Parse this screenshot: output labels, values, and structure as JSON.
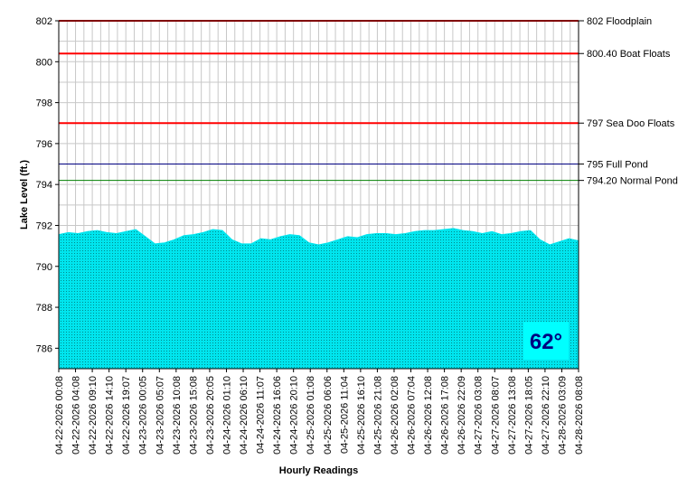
{
  "chart_data": {
    "type": "area",
    "xlabel": "Hourly Readings",
    "ylabel": "Lake Level (ft.)",
    "ylim": [
      785,
      802
    ],
    "y_ticks": [
      786,
      788,
      790,
      792,
      794,
      796,
      798,
      800,
      802
    ],
    "grid": true,
    "x_tick_labels": [
      "04-22-2026 00:08",
      "04-22-2026 04:08",
      "04-22-2026 09:10",
      "04-22-2026 14:10",
      "04-22-2026 19:07",
      "04-23-2026 00:05",
      "04-23-2026 05:07",
      "04-23-2026 10:08",
      "04-23-2026 15:08",
      "04-23-2026 20:05",
      "04-24-2026 01:10",
      "04-24-2026 06:10",
      "04-24-2026 11:07",
      "04-24-2026 16:06",
      "04-24-2026 20:10",
      "04-25-2026 01:08",
      "04-25-2026 06:06",
      "04-25-2026 11:04",
      "04-25-2026 16:10",
      "04-25-2026 21:08",
      "04-26-2026 02:08",
      "04-26-2026 07:04",
      "04-26-2026 12:08",
      "04-26-2026 17:08",
      "04-26-2026 22:09",
      "04-27-2026 03:08",
      "04-27-2026 08:07",
      "04-27-2026 13:08",
      "04-27-2026 18:05",
      "04-27-2026 22:10",
      "04-28-2026 03:09",
      "04-28-2026 08:08"
    ],
    "series": [
      {
        "color": "#00e5ee",
        "values": [
          791.55,
          791.65,
          791.6,
          791.7,
          791.75,
          791.65,
          791.6,
          791.7,
          791.8,
          791.45,
          791.1,
          791.15,
          791.3,
          791.5,
          791.55,
          791.65,
          791.8,
          791.75,
          791.3,
          791.1,
          791.1,
          791.35,
          791.3,
          791.45,
          791.55,
          791.5,
          791.15,
          791.05,
          791.15,
          791.3,
          791.45,
          791.4,
          791.55,
          791.6,
          791.6,
          791.55,
          791.6,
          791.7,
          791.75,
          791.75,
          791.8,
          791.85,
          791.75,
          791.7,
          791.6,
          791.7,
          791.55,
          791.6,
          791.7,
          791.75,
          791.3,
          791.05,
          791.2,
          791.35,
          791.25
        ]
      }
    ],
    "reference_lines": [
      {
        "value": 802,
        "label": "802 Floodplain",
        "color": "#ff0000"
      },
      {
        "value": 800.4,
        "label": "800.40 Boat Floats",
        "color": "#ff0000"
      },
      {
        "value": 797,
        "label": "797 Sea Doo Floats",
        "color": "#ff0000"
      },
      {
        "value": 795,
        "label": "795 Full Pond",
        "color": "#000080"
      },
      {
        "value": 794.2,
        "label": "794.20 Normal Pond",
        "color": "#008000"
      }
    ],
    "badge": {
      "text": "62°",
      "text_color": "#000080",
      "bg_color": "#00ffff"
    }
  }
}
